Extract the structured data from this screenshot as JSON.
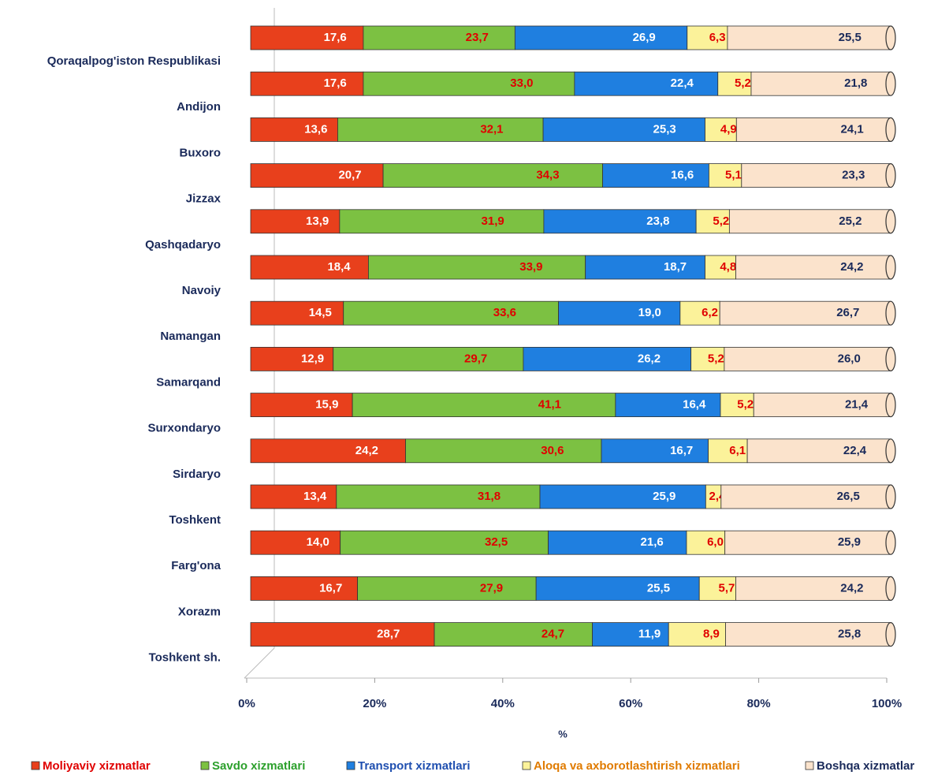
{
  "chart_data": {
    "type": "stacked_bar_horizontal",
    "categories": [
      "Qoraqalpog'iston  Respublikasi",
      "Andijon",
      "Buxoro",
      "Jizzax",
      "Qashqadaryo",
      "Navoiy",
      "Namangan",
      "Samarqand",
      "Surxondaryo",
      "Sirdaryo",
      "Toshkent",
      "Farg'ona",
      "Xorazm",
      "Toshkent sh."
    ],
    "series": [
      {
        "name": "Moliyaviy  xizmatlar",
        "color": "#e8401c",
        "label_color": "#ffffff",
        "legend_text_color": "#e00000",
        "values": [
          17.6,
          17.6,
          13.6,
          20.7,
          13.9,
          18.4,
          14.5,
          12.9,
          15.9,
          24.2,
          13.4,
          14.0,
          16.7,
          28.7
        ],
        "value_labels": [
          "17,6",
          "17,6",
          "13,6",
          "20,7",
          "13,9",
          "18,4",
          "14,5",
          "12,9",
          "15,9",
          "24,2",
          "13,4",
          "14,0",
          "16,7",
          "28,7"
        ]
      },
      {
        "name": "Savdo xizmatlari",
        "color": "#7cc142",
        "label_color": "#e00000",
        "legend_text_color": "#2ca02c",
        "values": [
          23.7,
          33.0,
          32.1,
          34.3,
          31.9,
          33.9,
          33.6,
          29.7,
          41.1,
          30.6,
          31.8,
          32.5,
          27.9,
          24.7
        ],
        "value_labels": [
          "23,7",
          "33,0",
          "32,1",
          "34,3",
          "31,9",
          "33,9",
          "33,6",
          "29,7",
          "41,1",
          "30,6",
          "31,8",
          "32,5",
          "27,9",
          "24,7"
        ]
      },
      {
        "name": "Transport xizmatlari",
        "color": "#1f7fe0",
        "label_color": "#ffffff",
        "legend_text_color": "#1f4fb0",
        "values": [
          26.9,
          22.4,
          25.3,
          16.6,
          23.8,
          18.7,
          19.0,
          26.2,
          16.4,
          16.7,
          25.9,
          21.6,
          25.5,
          11.9
        ],
        "value_labels": [
          "26,9",
          "22,4",
          "25,3",
          "16,6",
          "23,8",
          "18,7",
          "19,0",
          "26,2",
          "16,4",
          "16,7",
          "25,9",
          "21,6",
          "25,5",
          "11,9"
        ]
      },
      {
        "name": "Aloqa va axborotlashtirish  xizmatlari",
        "color": "#fbf29a",
        "label_color": "#e00000",
        "legend_text_color": "#e07b00",
        "values": [
          6.3,
          5.2,
          4.9,
          5.1,
          5.2,
          4.8,
          6.2,
          5.2,
          5.2,
          6.1,
          2.4,
          6.0,
          5.7,
          8.9
        ],
        "value_labels": [
          "6,3",
          "5,2",
          "4,9",
          "5,1",
          "5,2",
          "4,8",
          "6,2",
          "5,2",
          "5,2",
          "6,1",
          "2,4",
          "6,0",
          "5,7",
          "8,9"
        ]
      },
      {
        "name": "Boshqa xizmatlar",
        "color": "#fbe3cc",
        "label_color": "#1a2a5a",
        "legend_text_color": "#1a2a5a",
        "values": [
          25.5,
          21.8,
          24.1,
          23.3,
          25.2,
          24.2,
          26.7,
          26.0,
          21.4,
          22.4,
          26.5,
          25.9,
          24.2,
          25.8
        ],
        "value_labels": [
          "25,5",
          "21,8",
          "24,1",
          "23,3",
          "25,2",
          "24,2",
          "26,7",
          "26,0",
          "21,4",
          "22,4",
          "26,5",
          "25,9",
          "24,2",
          "25,8"
        ]
      }
    ],
    "xlabel": "%",
    "xlim": [
      0,
      100
    ],
    "xticks": [
      {
        "value": 0,
        "label": "0%"
      },
      {
        "value": 20,
        "label": "20%"
      },
      {
        "value": 40,
        "label": "40%"
      },
      {
        "value": 60,
        "label": "60%"
      },
      {
        "value": 80,
        "label": "80%"
      },
      {
        "value": 100,
        "label": "100%"
      }
    ],
    "legend": "bottom"
  }
}
